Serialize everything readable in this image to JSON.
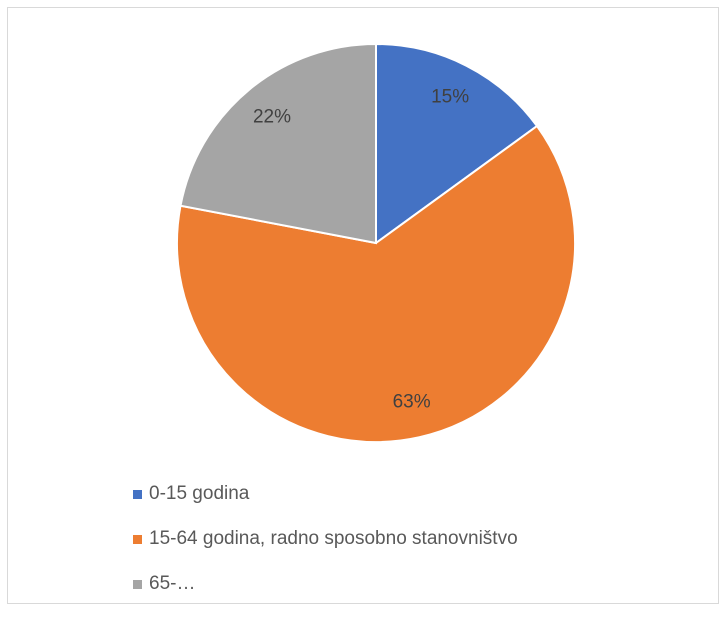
{
  "chart_data": {
    "type": "pie",
    "categories": [
      "0-15 godina",
      "15-64 godina, radno sposobno stanovništvo",
      "65-…"
    ],
    "values": [
      15,
      63,
      22
    ],
    "data_labels": [
      "15%",
      "63%",
      "22%"
    ],
    "colors": [
      "#4472c4",
      "#ed7d31",
      "#a5a5a5"
    ],
    "legend_position": "bottom"
  }
}
